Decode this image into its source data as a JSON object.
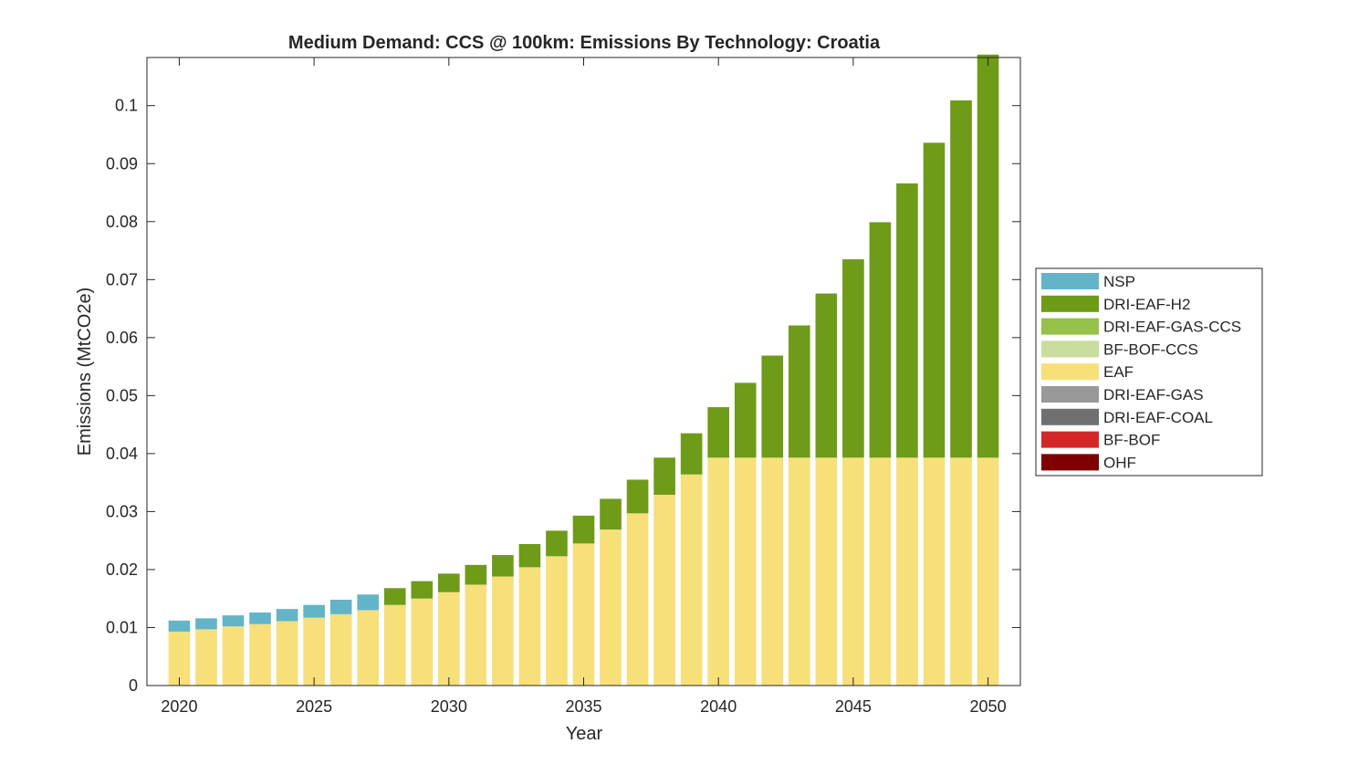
{
  "chart_data": {
    "type": "bar",
    "stacked": true,
    "title": "Medium Demand: CCS @ 100km: Emissions By Technology: Croatia",
    "xlabel": "Year",
    "ylabel": "Emissions (MtCO2e)",
    "xlim": [
      2018.8,
      2051.2
    ],
    "ylim": [
      0,
      0.1083
    ],
    "x_ticks": [
      2020,
      2025,
      2030,
      2035,
      2040,
      2045,
      2050
    ],
    "y_ticks": [
      0,
      0.01,
      0.02,
      0.03,
      0.04,
      0.05,
      0.06,
      0.07,
      0.08,
      0.09,
      0.1
    ],
    "grid": false,
    "legend_position": "right",
    "categories": [
      2020,
      2021,
      2022,
      2023,
      2024,
      2025,
      2026,
      2027,
      2028,
      2029,
      2030,
      2031,
      2032,
      2033,
      2034,
      2035,
      2036,
      2037,
      2038,
      2039,
      2040,
      2041,
      2042,
      2043,
      2044,
      2045,
      2046,
      2047,
      2048,
      2049,
      2050
    ],
    "series": [
      {
        "name": "OHF",
        "color": "#7f0000",
        "values": [
          0,
          0,
          0,
          0,
          0,
          0,
          0,
          0,
          0,
          0,
          0,
          0,
          0,
          0,
          0,
          0,
          0,
          0,
          0,
          0,
          0,
          0,
          0,
          0,
          0,
          0,
          0,
          0,
          0,
          0,
          0
        ]
      },
      {
        "name": "BF-BOF",
        "color": "#d62728",
        "values": [
          0,
          0,
          0,
          0,
          0,
          0,
          0,
          0,
          0,
          0,
          0,
          0,
          0,
          0,
          0,
          0,
          0,
          0,
          0,
          0,
          0,
          0,
          0,
          0,
          0,
          0,
          0,
          0,
          0,
          0,
          0
        ]
      },
      {
        "name": "DRI-EAF-COAL",
        "color": "#707070",
        "values": [
          0,
          0,
          0,
          0,
          0,
          0,
          0,
          0,
          0,
          0,
          0,
          0,
          0,
          0,
          0,
          0,
          0,
          0,
          0,
          0,
          0,
          0,
          0,
          0,
          0,
          0,
          0,
          0,
          0,
          0,
          0
        ]
      },
      {
        "name": "DRI-EAF-GAS",
        "color": "#999999",
        "values": [
          0,
          0,
          0,
          0,
          0,
          0,
          0,
          0,
          0,
          0,
          0,
          0,
          0,
          0,
          0,
          0,
          0,
          0,
          0,
          0,
          0,
          0,
          0,
          0,
          0,
          0,
          0,
          0,
          0,
          0,
          0
        ]
      },
      {
        "name": "EAF",
        "color": "#f7df7a",
        "values": [
          0.0093,
          0.0097,
          0.0102,
          0.0106,
          0.0111,
          0.0117,
          0.0123,
          0.013,
          0.0139,
          0.015,
          0.0161,
          0.0174,
          0.0188,
          0.0204,
          0.0223,
          0.0245,
          0.0269,
          0.0297,
          0.0329,
          0.0364,
          0.0393,
          0.0393,
          0.0393,
          0.0393,
          0.0393,
          0.0393,
          0.0393,
          0.0393,
          0.0393,
          0.0393,
          0.0393
        ]
      },
      {
        "name": "BF-BOF-CCS",
        "color": "#c9dd9c",
        "values": [
          0,
          0,
          0,
          0,
          0,
          0,
          0,
          0,
          0,
          0,
          0,
          0,
          0,
          0,
          0,
          0,
          0,
          0,
          0,
          0,
          0,
          0,
          0,
          0,
          0,
          0,
          0,
          0,
          0,
          0,
          0
        ]
      },
      {
        "name": "DRI-EAF-GAS-CCS",
        "color": "#96c14a",
        "values": [
          0,
          0,
          0,
          0,
          0,
          0,
          0,
          0,
          0,
          0,
          0,
          0,
          0,
          0,
          0,
          0,
          0,
          0,
          0,
          0,
          0,
          0,
          0,
          0,
          0,
          0,
          0,
          0,
          0,
          0,
          0
        ]
      },
      {
        "name": "DRI-EAF-H2",
        "color": "#6e9b18",
        "values": [
          0,
          0,
          0,
          0,
          0,
          0,
          0,
          0,
          0.0029,
          0.003,
          0.0032,
          0.0034,
          0.0037,
          0.004,
          0.0044,
          0.0048,
          0.0053,
          0.0058,
          0.0064,
          0.0071,
          0.0087,
          0.0129,
          0.0176,
          0.0228,
          0.0283,
          0.0342,
          0.0406,
          0.0473,
          0.0543,
          0.0616,
          0.0695
        ]
      },
      {
        "name": "NSP",
        "color": "#63b4c8",
        "values": [
          0.0019,
          0.0019,
          0.0019,
          0.002,
          0.0021,
          0.0022,
          0.0025,
          0.0027,
          0,
          0,
          0,
          0,
          0,
          0,
          0,
          0,
          0,
          0,
          0,
          0,
          0,
          0,
          0,
          0,
          0,
          0,
          0,
          0,
          0,
          0,
          0
        ]
      }
    ],
    "legend_order": [
      "NSP",
      "DRI-EAF-H2",
      "DRI-EAF-GAS-CCS",
      "BF-BOF-CCS",
      "EAF",
      "DRI-EAF-GAS",
      "DRI-EAF-COAL",
      "BF-BOF",
      "OHF"
    ]
  }
}
